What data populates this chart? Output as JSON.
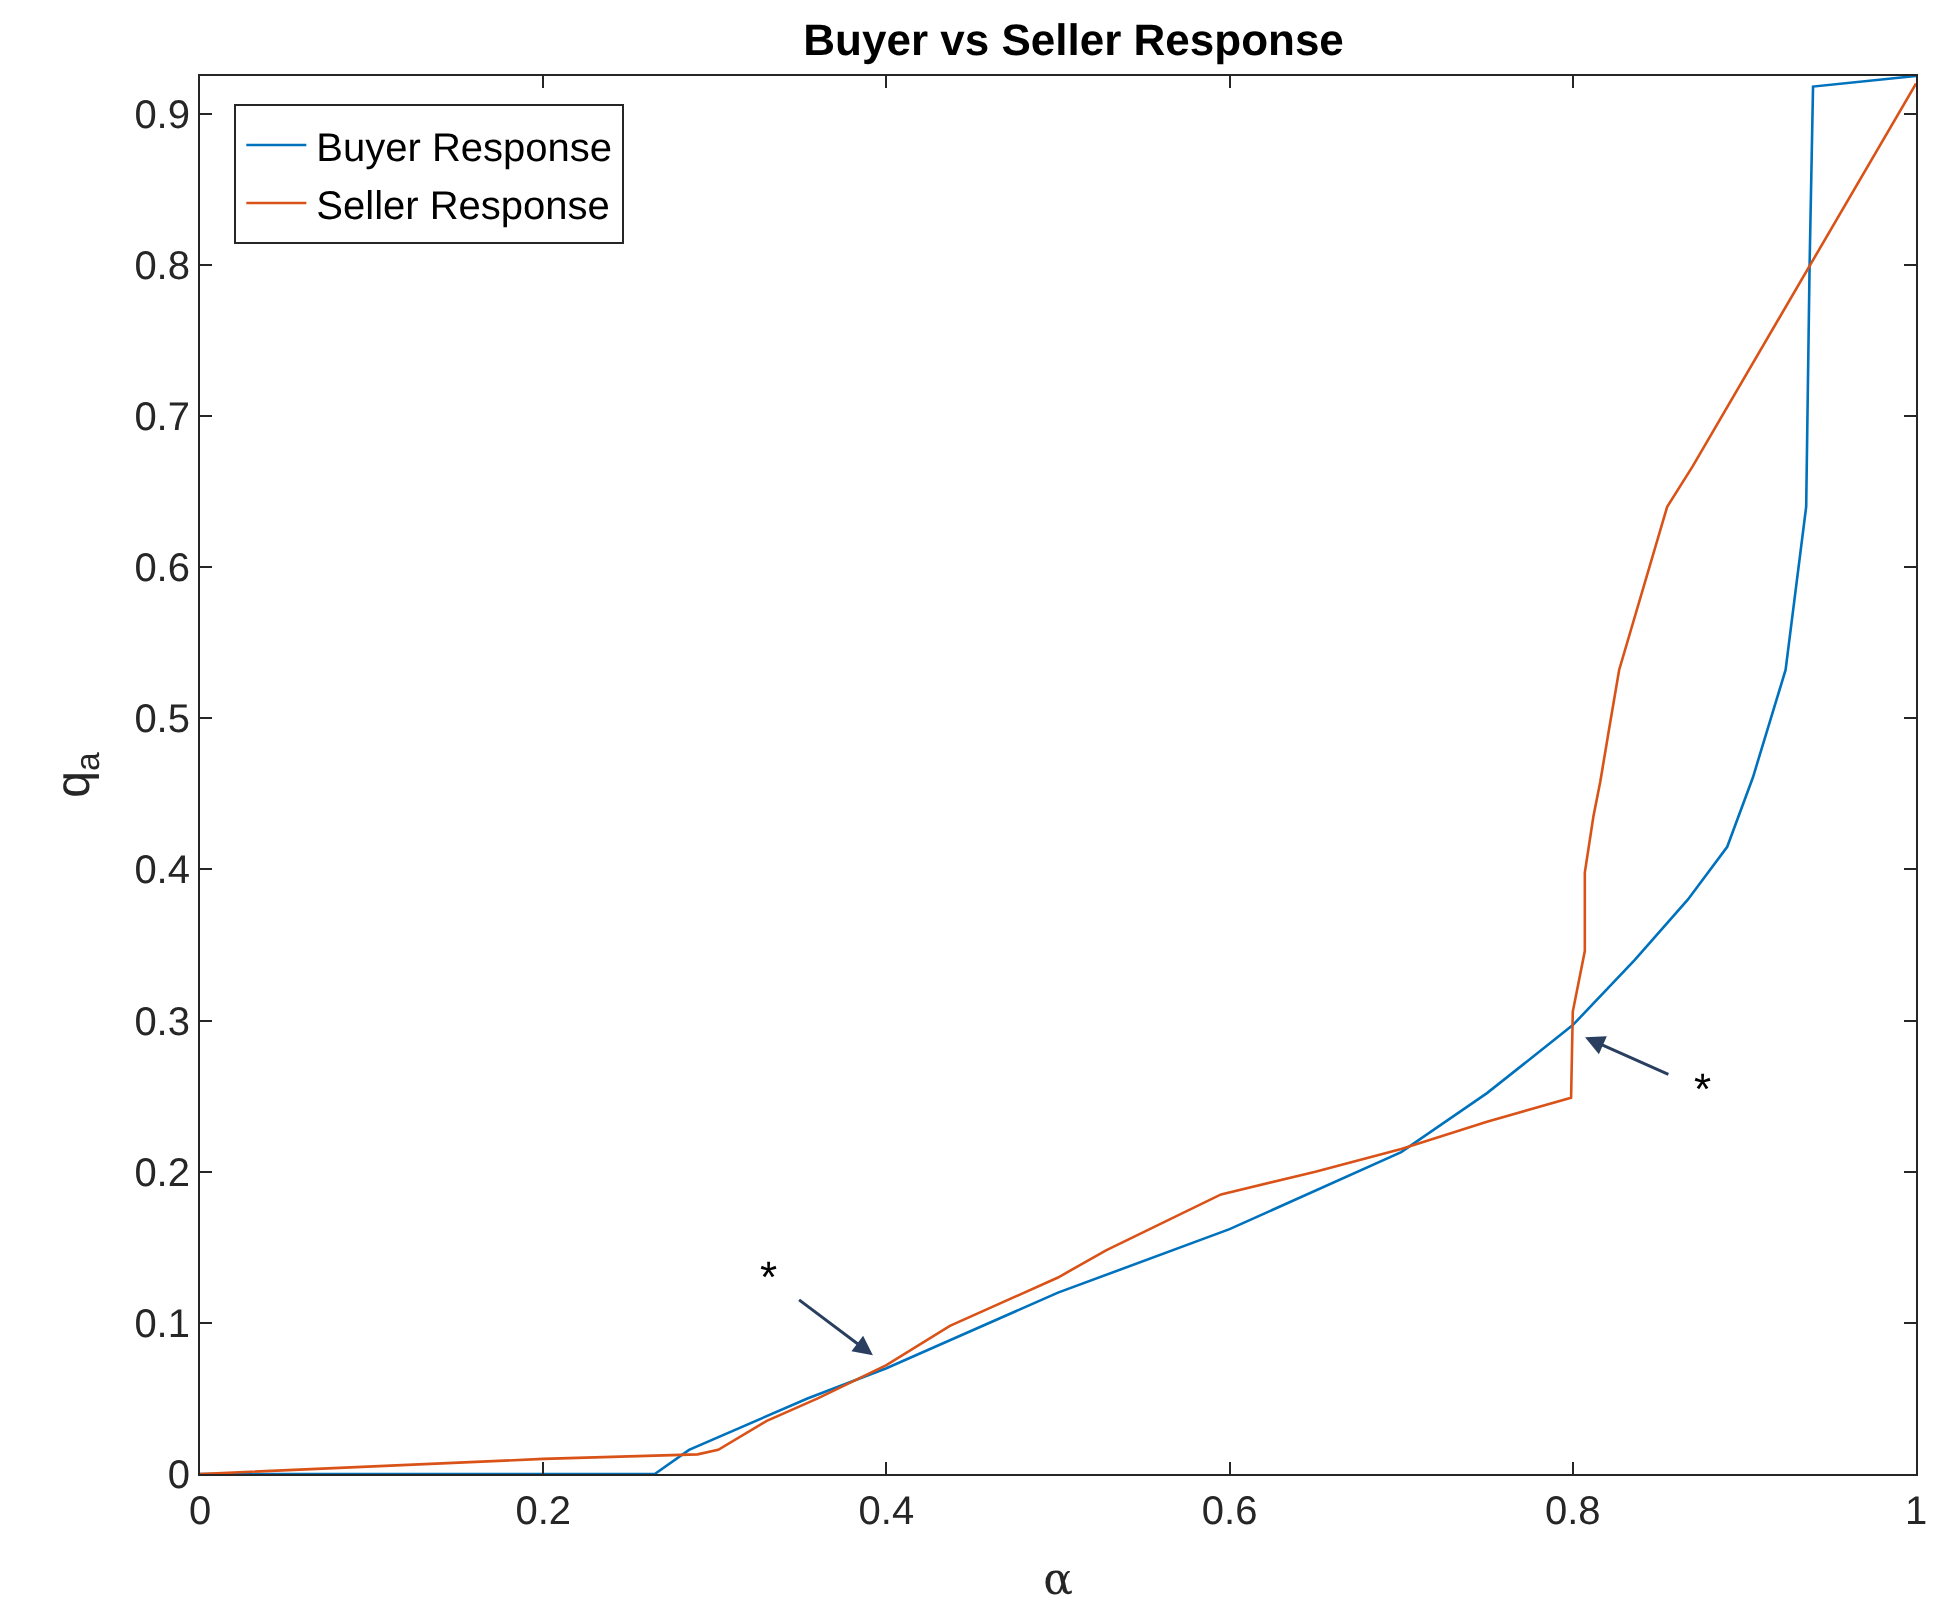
{
  "chart_data": {
    "type": "line",
    "title": "Buyer vs Seller Response",
    "xlabel": "α",
    "ylabel": "q$_{a}$",
    "xlim": [
      0,
      1
    ],
    "ylim": [
      0,
      0.925
    ],
    "xticks": [
      0,
      0.2,
      0.4,
      0.6,
      0.8,
      1
    ],
    "yticks": [
      0,
      0.1,
      0.2,
      0.3,
      0.4,
      0.5,
      0.6,
      0.7,
      0.8,
      0.9
    ],
    "legend": "top left",
    "marker": "none",
    "line_style": "solid",
    "series": [
      {
        "name": "Buyer Response",
        "color": "#0072bd",
        "x": [
          0,
          0.265,
          0.285,
          0.354,
          0.4,
          0.5,
          0.6,
          0.7,
          0.75,
          0.8,
          0.836,
          0.867,
          0.89,
          0.905,
          0.924,
          0.936,
          0.938,
          0.94,
          1
        ],
        "values": [
          0,
          0,
          0.016,
          0.05,
          0.07,
          0.12,
          0.162,
          0.213,
          0.252,
          0.297,
          0.34,
          0.38,
          0.415,
          0.461,
          0.532,
          0.64,
          0.8,
          0.918,
          0.925
        ]
      },
      {
        "name": "Seller Response",
        "color": "#d95319",
        "x": [
          0,
          0.2,
          0.29,
          0.302,
          0.33,
          0.36,
          0.4,
          0.437,
          0.5,
          0.528,
          0.595,
          0.65,
          0.7,
          0.75,
          0.799,
          0.8,
          0.807,
          0.807,
          0.812,
          0.816,
          0.821,
          0.827,
          0.855,
          0.87,
          1
        ],
        "values": [
          0,
          0.01,
          0.013,
          0.016,
          0.035,
          0.05,
          0.072,
          0.098,
          0.13,
          0.148,
          0.185,
          0.2,
          0.215,
          0.233,
          0.249,
          0.306,
          0.346,
          0.398,
          0.435,
          0.458,
          0.492,
          0.532,
          0.64,
          0.667,
          0.92
        ]
      }
    ],
    "annotations": [
      {
        "text": "*",
        "x": 0.394,
        "y": 0.077
      },
      {
        "text": "*",
        "x": 0.805,
        "y": 0.29
      }
    ]
  }
}
